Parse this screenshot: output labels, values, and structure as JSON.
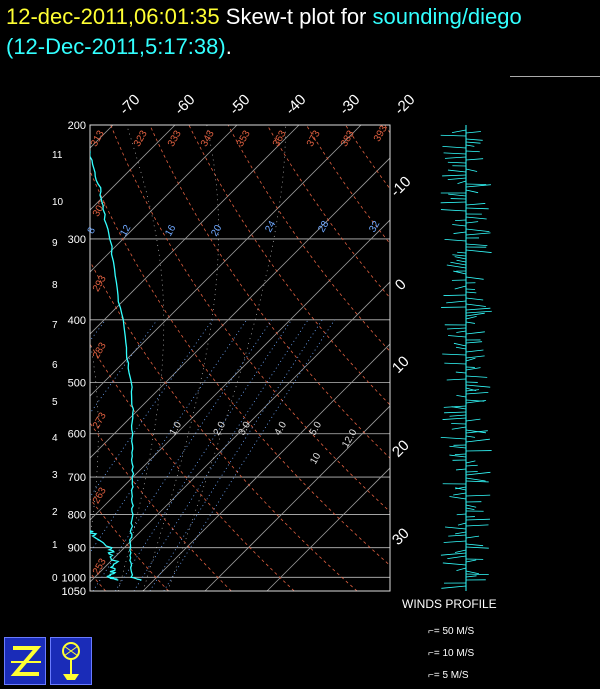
{
  "header": {
    "date": "12-dec-2011,06:01:35",
    "plot_label": "Skew-t plot for",
    "source": "sounding/diego",
    "subtitle": "(12-Dec-2011,5:17:38)",
    "subtitle_end": "."
  },
  "colors": {
    "background": "#000000",
    "date_text": "#ffff33",
    "profile": "#33ffff",
    "isobar": "#ffffff",
    "isotherm": "#ffffff",
    "dry_adiabat": "#e06040",
    "mixing_ratio": "#6fa8ff",
    "moist_adiabat": "#ffffff"
  },
  "chart_data": {
    "type": "line",
    "title": "Skew-t plot for sounding/diego",
    "pressure_levels": [
      200,
      300,
      400,
      500,
      600,
      700,
      800,
      900,
      1000,
      1050
    ],
    "height_km_labels": [
      "11",
      "10",
      "9",
      "8",
      "7",
      "6",
      "5",
      "4",
      "3",
      "2",
      "1",
      "0"
    ],
    "isotherm_labels_top": [
      "-70",
      "-60",
      "-50",
      "-40",
      "-30",
      "-20"
    ],
    "isotherm_labels_right": [
      "-10",
      "0",
      "10",
      "20",
      "30"
    ],
    "dry_adiabat_labels": [
      "313",
      "323",
      "333",
      "343",
      "353",
      "363",
      "373",
      "383",
      "393",
      "303",
      "293",
      "283",
      "273",
      "263",
      "253"
    ],
    "mixing_ratio_labels": [
      "8",
      "12",
      "16",
      "20",
      "24",
      "28",
      "32"
    ],
    "moist_labels": [
      "1.0",
      "2.0",
      "3.0",
      "4.0",
      "5.0",
      "10",
      "12.0"
    ],
    "temperature_profile": [
      {
        "p": 1010,
        "t": 28
      },
      {
        "p": 1000,
        "t": 26
      },
      {
        "p": 950,
        "t": 23.5
      },
      {
        "p": 900,
        "t": 21
      },
      {
        "p": 850,
        "t": 18.5
      },
      {
        "p": 800,
        "t": 16
      },
      {
        "p": 750,
        "t": 13
      },
      {
        "p": 700,
        "t": 10
      },
      {
        "p": 650,
        "t": 6.5
      },
      {
        "p": 600,
        "t": 3
      },
      {
        "p": 550,
        "t": -1
      },
      {
        "p": 500,
        "t": -5.5
      },
      {
        "p": 450,
        "t": -11
      },
      {
        "p": 400,
        "t": -17
      },
      {
        "p": 350,
        "t": -24
      },
      {
        "p": 300,
        "t": -32
      },
      {
        "p": 270,
        "t": -38
      },
      {
        "p": 250,
        "t": -42
      },
      {
        "p": 230,
        "t": -47
      },
      {
        "p": 210,
        "t": -52
      },
      {
        "p": 200,
        "t": -55
      }
    ],
    "dewpoint_profile": [
      {
        "p": 1010,
        "t": 24
      },
      {
        "p": 1000,
        "t": 22.5
      },
      {
        "p": 980,
        "t": 22
      },
      {
        "p": 950,
        "t": 21
      },
      {
        "p": 920,
        "t": 19
      },
      {
        "p": 900,
        "t": 17.5
      },
      {
        "p": 870,
        "t": 14
      },
      {
        "p": 850,
        "t": 12
      },
      {
        "p": 820,
        "t": 9
      },
      {
        "p": 800,
        "t": 7
      },
      {
        "p": 770,
        "t": 2
      },
      {
        "p": 750,
        "t": 0
      },
      {
        "p": 720,
        "t": -3
      },
      {
        "p": 700,
        "t": -4
      },
      {
        "p": 670,
        "t": -8
      },
      {
        "p": 650,
        "t": -10
      },
      {
        "p": 620,
        "t": -14
      },
      {
        "p": 600,
        "t": -15
      },
      {
        "p": 570,
        "t": -18
      },
      {
        "p": 550,
        "t": -20
      },
      {
        "p": 520,
        "t": -23
      },
      {
        "p": 500,
        "t": -25
      },
      {
        "p": 480,
        "t": -28
      },
      {
        "p": 450,
        "t": -31
      },
      {
        "p": 430,
        "t": -36
      },
      {
        "p": 400,
        "t": -38
      },
      {
        "p": 380,
        "t": -42
      },
      {
        "p": 360,
        "t": -46
      },
      {
        "p": 340,
        "t": -49
      },
      {
        "p": 320,
        "t": -53
      },
      {
        "p": 300,
        "t": -56
      },
      {
        "p": 285,
        "t": -60
      },
      {
        "p": 270,
        "t": -63
      },
      {
        "p": 260,
        "t": -66
      },
      {
        "p": 250,
        "t": -71
      },
      {
        "p": 240,
        "t": -75
      },
      {
        "p": 235,
        "t": -78
      },
      {
        "p": 225,
        "t": -78
      },
      {
        "p": 215,
        "t": -80
      },
      {
        "p": 205,
        "t": -78
      },
      {
        "p": 200,
        "t": -76
      }
    ]
  },
  "winds": {
    "title": "WINDS PROFILE",
    "legend": [
      "= 50 M/S",
      "= 10 M/S",
      "= 5 M/S"
    ]
  }
}
